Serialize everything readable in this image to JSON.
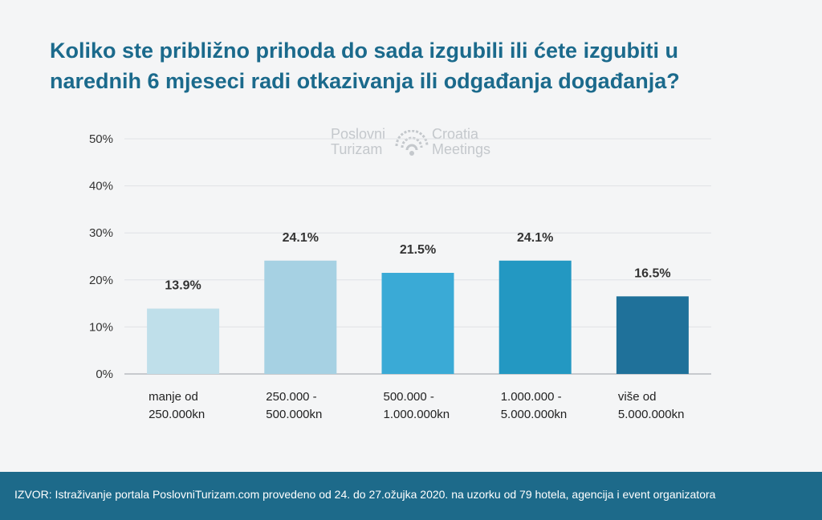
{
  "title": "Koliko ste približno prihoda do sada izgubili ili ćete izgubiti u narednih 6 mjeseci radi otkazivanja ili odgađanja događanja?",
  "logo": {
    "left_line1": "Poslovni",
    "left_line2": "Turizam",
    "right_line1": "Croatia",
    "right_line2": "Meetings"
  },
  "footer": "IZVOR: Istraživanje portala PoslovniTurizam.com provedeno od 24. do 27.ožujka 2020. na uzorku od 79 hotela, agencija i event organizatora",
  "chart_data": {
    "type": "bar",
    "categories": [
      [
        "manje od",
        "250.000kn"
      ],
      [
        "250.000 -",
        "500.000kn"
      ],
      [
        "500.000 -",
        "1.000.000kn"
      ],
      [
        "1.000.000 -",
        "5.000.000kn"
      ],
      [
        "više od",
        "5.000.000kn"
      ]
    ],
    "values": [
      13.9,
      24.1,
      21.5,
      24.1,
      16.5
    ],
    "data_labels": [
      "13.9%",
      "24.1%",
      "21.5%",
      "24.1%",
      "16.5%"
    ],
    "ylim": [
      0,
      50
    ],
    "yticks": [
      0,
      10,
      20,
      30,
      40,
      50
    ],
    "ytick_labels": [
      "0%",
      "10%",
      "20%",
      "30%",
      "40%",
      "50%"
    ],
    "grid": true,
    "colors": [
      "#bfdfea",
      "#a6d1e3",
      "#3aaad6",
      "#2398c2",
      "#1f719a"
    ]
  }
}
